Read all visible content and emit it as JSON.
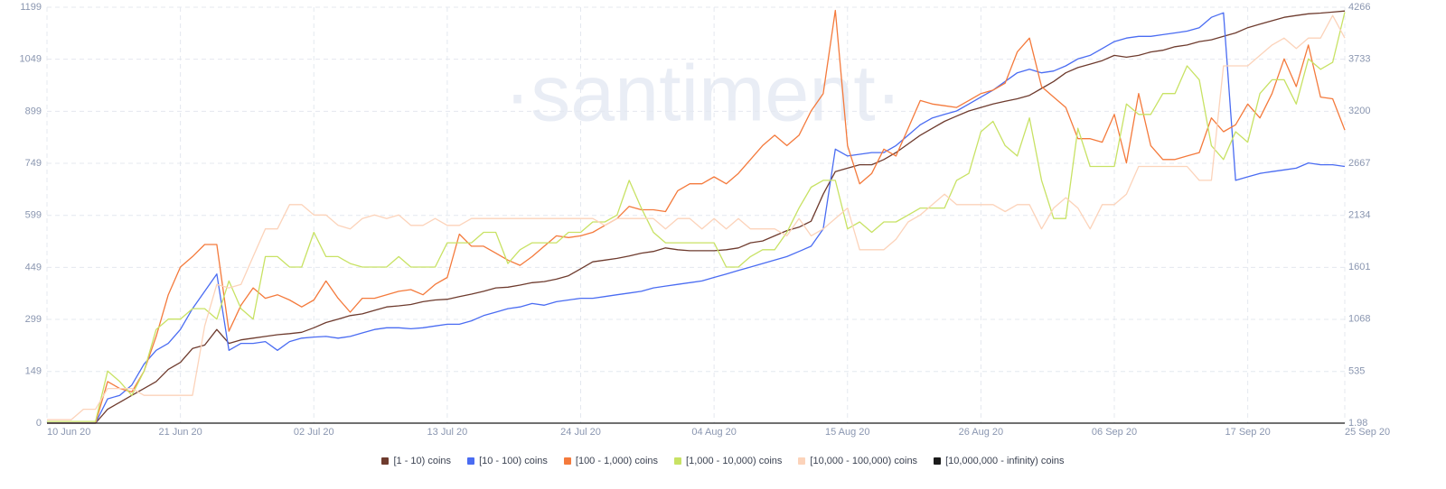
{
  "chart_data": {
    "type": "line",
    "watermark": "·santiment·",
    "x": [
      "10 Jun 20",
      "11 Jun 20",
      "12 Jun 20",
      "13 Jun 20",
      "14 Jun 20",
      "15 Jun 20",
      "16 Jun 20",
      "17 Jun 20",
      "18 Jun 20",
      "19 Jun 20",
      "20 Jun 20",
      "21 Jun 20",
      "22 Jun 20",
      "23 Jun 20",
      "24 Jun 20",
      "25 Jun 20",
      "26 Jun 20",
      "27 Jun 20",
      "28 Jun 20",
      "29 Jun 20",
      "30 Jun 20",
      "01 Jul 20",
      "02 Jul 20",
      "03 Jul 20",
      "04 Jul 20",
      "05 Jul 20",
      "06 Jul 20",
      "07 Jul 20",
      "08 Jul 20",
      "09 Jul 20",
      "10 Jul 20",
      "11 Jul 20",
      "12 Jul 20",
      "13 Jul 20",
      "14 Jul 20",
      "15 Jul 20",
      "16 Jul 20",
      "17 Jul 20",
      "18 Jul 20",
      "19 Jul 20",
      "20 Jul 20",
      "21 Jul 20",
      "22 Jul 20",
      "23 Jul 20",
      "24 Jul 20",
      "25 Jul 20",
      "26 Jul 20",
      "27 Jul 20",
      "28 Jul 20",
      "29 Jul 20",
      "30 Jul 20",
      "31 Jul 20",
      "01 Aug 20",
      "02 Aug 20",
      "03 Aug 20",
      "04 Aug 20",
      "05 Aug 20",
      "06 Aug 20",
      "07 Aug 20",
      "08 Aug 20",
      "09 Aug 20",
      "10 Aug 20",
      "11 Aug 20",
      "12 Aug 20",
      "13 Aug 20",
      "14 Aug 20",
      "15 Aug 20",
      "16 Aug 20",
      "17 Aug 20",
      "18 Aug 20",
      "19 Aug 20",
      "20 Aug 20",
      "21 Aug 20",
      "22 Aug 20",
      "23 Aug 20",
      "24 Aug 20",
      "25 Aug 20",
      "26 Aug 20",
      "27 Aug 20",
      "28 Aug 20",
      "29 Aug 20",
      "30 Aug 20",
      "31 Aug 20",
      "01 Sep 20",
      "02 Sep 20",
      "03 Sep 20",
      "04 Sep 20",
      "05 Sep 20",
      "06 Sep 20",
      "07 Sep 20",
      "08 Sep 20",
      "09 Sep 20",
      "10 Sep 20",
      "11 Sep 20",
      "12 Sep 20",
      "13 Sep 20",
      "14 Sep 20",
      "15 Sep 20",
      "16 Sep 20",
      "17 Sep 20",
      "18 Sep 20",
      "19 Sep 20",
      "20 Sep 20",
      "21 Sep 20",
      "22 Sep 20",
      "23 Sep 20",
      "24 Sep 20",
      "25 Sep 20"
    ],
    "xticks": [
      "10 Jun 20",
      "21 Jun 20",
      "02 Jul 20",
      "13 Jul 20",
      "24 Jul 20",
      "04 Aug 20",
      "15 Aug 20",
      "26 Aug 20",
      "06 Sep 20",
      "17 Sep 20",
      "25 Sep 20"
    ],
    "ylim": [
      0,
      1199
    ],
    "yticks": [
      0,
      149,
      299,
      449,
      599,
      749,
      899,
      1049,
      1199
    ],
    "y2lim": [
      1.98,
      4266
    ],
    "y2ticks": [
      1.98,
      535,
      1068,
      1601,
      2134,
      2667,
      3200,
      3733,
      4266
    ],
    "grid": true,
    "series": [
      {
        "name": "[1 - 10) coins",
        "color": "#6e3b2e",
        "values": [
          0,
          0,
          0,
          0,
          0,
          40,
          60,
          80,
          100,
          120,
          155,
          175,
          215,
          225,
          270,
          230,
          240,
          245,
          250,
          255,
          258,
          262,
          275,
          290,
          300,
          310,
          315,
          325,
          335,
          338,
          342,
          350,
          355,
          357,
          365,
          372,
          380,
          390,
          392,
          398,
          405,
          408,
          415,
          425,
          445,
          465,
          470,
          475,
          482,
          490,
          495,
          505,
          500,
          497,
          497,
          497,
          500,
          505,
          520,
          525,
          540,
          555,
          565,
          582,
          660,
          725,
          735,
          745,
          745,
          760,
          780,
          805,
          830,
          850,
          870,
          885,
          900,
          910,
          920,
          928,
          935,
          945,
          965,
          985,
          1010,
          1025,
          1035,
          1045,
          1060,
          1055,
          1060,
          1070,
          1075,
          1085,
          1090,
          1100,
          1105,
          1115,
          1125,
          1140,
          1150,
          1160,
          1170,
          1175,
          1180,
          1182,
          1185,
          1188
        ]
      },
      {
        "name": "[10 - 100) coins",
        "color": "#4a6cf2",
        "values": [
          0,
          0,
          0,
          0,
          0,
          70,
          80,
          110,
          170,
          210,
          230,
          270,
          330,
          380,
          430,
          210,
          230,
          230,
          235,
          210,
          235,
          245,
          248,
          250,
          245,
          250,
          260,
          270,
          275,
          275,
          272,
          275,
          280,
          285,
          285,
          295,
          310,
          320,
          330,
          335,
          345,
          340,
          350,
          355,
          360,
          360,
          365,
          370,
          375,
          380,
          390,
          395,
          400,
          405,
          410,
          420,
          430,
          440,
          450,
          460,
          470,
          480,
          495,
          510,
          560,
          790,
          770,
          775,
          780,
          780,
          800,
          830,
          860,
          880,
          890,
          900,
          920,
          940,
          960,
          985,
          1010,
          1020,
          1010,
          1015,
          1030,
          1050,
          1060,
          1080,
          1100,
          1110,
          1115,
          1115,
          1120,
          1125,
          1130,
          1140,
          1170,
          1183,
          700,
          710,
          720,
          725,
          730,
          735,
          750,
          745,
          745,
          740
        ]
      },
      {
        "name": "[100 - 1,000) coins",
        "color": "#f47a3c",
        "values": [
          0,
          0,
          0,
          0,
          0,
          120,
          100,
          90,
          150,
          250,
          370,
          450,
          480,
          515,
          515,
          265,
          340,
          390,
          360,
          370,
          355,
          335,
          355,
          410,
          360,
          320,
          360,
          360,
          370,
          380,
          385,
          370,
          400,
          420,
          545,
          510,
          510,
          490,
          470,
          455,
          480,
          510,
          540,
          535,
          540,
          550,
          570,
          590,
          625,
          615,
          615,
          610,
          670,
          690,
          690,
          710,
          690,
          720,
          760,
          800,
          830,
          800,
          830,
          900,
          950,
          1190,
          800,
          690,
          720,
          790,
          770,
          850,
          930,
          920,
          915,
          910,
          930,
          950,
          960,
          980,
          1070,
          1110,
          970,
          940,
          910,
          820,
          820,
          810,
          890,
          750,
          950,
          800,
          760,
          760,
          770,
          780,
          880,
          840,
          860,
          920,
          880,
          950,
          1050,
          970,
          1090,
          940,
          935,
          845
        ]
      },
      {
        "name": "[1,000 - 10,000) coins",
        "color": "#c8e264",
        "values": [
          5,
          5,
          5,
          5,
          5,
          150,
          120,
          80,
          150,
          270,
          300,
          300,
          330,
          330,
          300,
          410,
          330,
          300,
          480,
          480,
          450,
          450,
          550,
          480,
          480,
          460,
          450,
          450,
          450,
          480,
          450,
          450,
          450,
          520,
          520,
          520,
          550,
          550,
          460,
          500,
          520,
          520,
          520,
          550,
          550,
          580,
          580,
          600,
          700,
          620,
          550,
          520,
          520,
          520,
          520,
          520,
          450,
          450,
          480,
          500,
          500,
          550,
          620,
          680,
          700,
          700,
          560,
          580,
          550,
          580,
          580,
          600,
          620,
          620,
          620,
          700,
          720,
          840,
          870,
          800,
          770,
          880,
          700,
          590,
          590,
          850,
          740,
          740,
          740,
          920,
          890,
          890,
          950,
          950,
          1030,
          990,
          800,
          760,
          840,
          810,
          950,
          990,
          990,
          920,
          1050,
          1020,
          1040,
          1185
        ]
      },
      {
        "name": "[10,000 - 100,000) coins",
        "color": "#fcd3ba",
        "values": [
          10,
          10,
          10,
          40,
          40,
          100,
          100,
          100,
          80,
          80,
          80,
          80,
          80,
          280,
          400,
          390,
          400,
          480,
          560,
          560,
          630,
          630,
          600,
          600,
          570,
          560,
          590,
          600,
          590,
          600,
          570,
          570,
          590,
          570,
          570,
          590,
          590,
          590,
          590,
          590,
          590,
          590,
          590,
          590,
          590,
          590,
          570,
          590,
          590,
          590,
          590,
          560,
          590,
          590,
          560,
          590,
          560,
          590,
          560,
          560,
          560,
          540,
          590,
          540,
          560,
          590,
          620,
          500,
          500,
          500,
          530,
          580,
          600,
          630,
          660,
          630,
          630,
          630,
          630,
          610,
          630,
          630,
          560,
          620,
          650,
          620,
          560,
          630,
          630,
          660,
          740,
          740,
          740,
          740,
          740,
          700,
          700,
          1030,
          1030,
          1030,
          1060,
          1090,
          1110,
          1080,
          1110,
          1110,
          1175,
          1110
        ]
      },
      {
        "name": "[10,000,000 - infinity) coins",
        "color": "#1b1b1b",
        "axis": "y2",
        "values": [
          2,
          2,
          2,
          2,
          2,
          2,
          2,
          2,
          2,
          2,
          2,
          2,
          2,
          2,
          2,
          2,
          2,
          2,
          2,
          2,
          2,
          2,
          2,
          2,
          2,
          2,
          2,
          2,
          2,
          2,
          2,
          2,
          2,
          2,
          2,
          2,
          2,
          2,
          2,
          2,
          2,
          2,
          2,
          2,
          2,
          2,
          2,
          2,
          2,
          2,
          2,
          2,
          2,
          2,
          2,
          2,
          2,
          2,
          2,
          2,
          2,
          2,
          2,
          2,
          2,
          2,
          2,
          2,
          2,
          2,
          2,
          2,
          2,
          2,
          2,
          2,
          2,
          2,
          2,
          2,
          2,
          2,
          2,
          2,
          2,
          2,
          2,
          2,
          2,
          2,
          2,
          2,
          2,
          2,
          2,
          2,
          2,
          2,
          2,
          2,
          2,
          2,
          2,
          2,
          2,
          2,
          2,
          2
        ]
      }
    ]
  }
}
